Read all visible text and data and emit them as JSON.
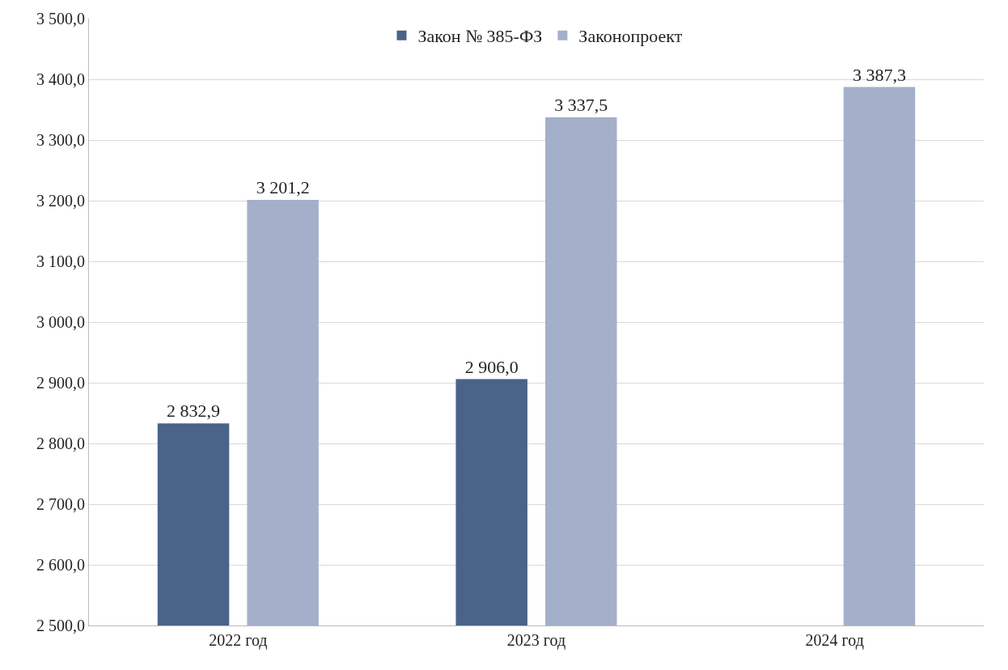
{
  "chart_data": {
    "type": "bar",
    "categories": [
      "2022 год",
      "2023 год",
      "2024 год"
    ],
    "series": [
      {
        "name": "Закон № 385-ФЗ",
        "color": "#4a6389",
        "values": [
          2832.9,
          2906.0,
          null
        ],
        "value_labels": [
          "2 832,9",
          "2 906,0",
          null
        ]
      },
      {
        "name": "Законопроект",
        "color": "#a4afc9",
        "values": [
          3201.2,
          3337.5,
          3387.3
        ],
        "value_labels": [
          "3 201,2",
          "3 337,5",
          "3 387,3"
        ]
      }
    ],
    "ylim": [
      2500,
      3500
    ],
    "yticks": [
      {
        "value": 2500,
        "label": "2 500,0"
      },
      {
        "value": 2600,
        "label": "2 600,0"
      },
      {
        "value": 2700,
        "label": "2 700,0"
      },
      {
        "value": 2800,
        "label": "2 800,0"
      },
      {
        "value": 2900,
        "label": "2 900,0"
      },
      {
        "value": 3000,
        "label": "3 000,0"
      },
      {
        "value": 3100,
        "label": "3 100,0"
      },
      {
        "value": 3200,
        "label": "3 200,0"
      },
      {
        "value": 3300,
        "label": "3 300,0"
      },
      {
        "value": 3400,
        "label": "3 400,0"
      },
      {
        "value": 3500,
        "label": "3 500,0"
      }
    ],
    "grid": "y",
    "legend": "top"
  }
}
